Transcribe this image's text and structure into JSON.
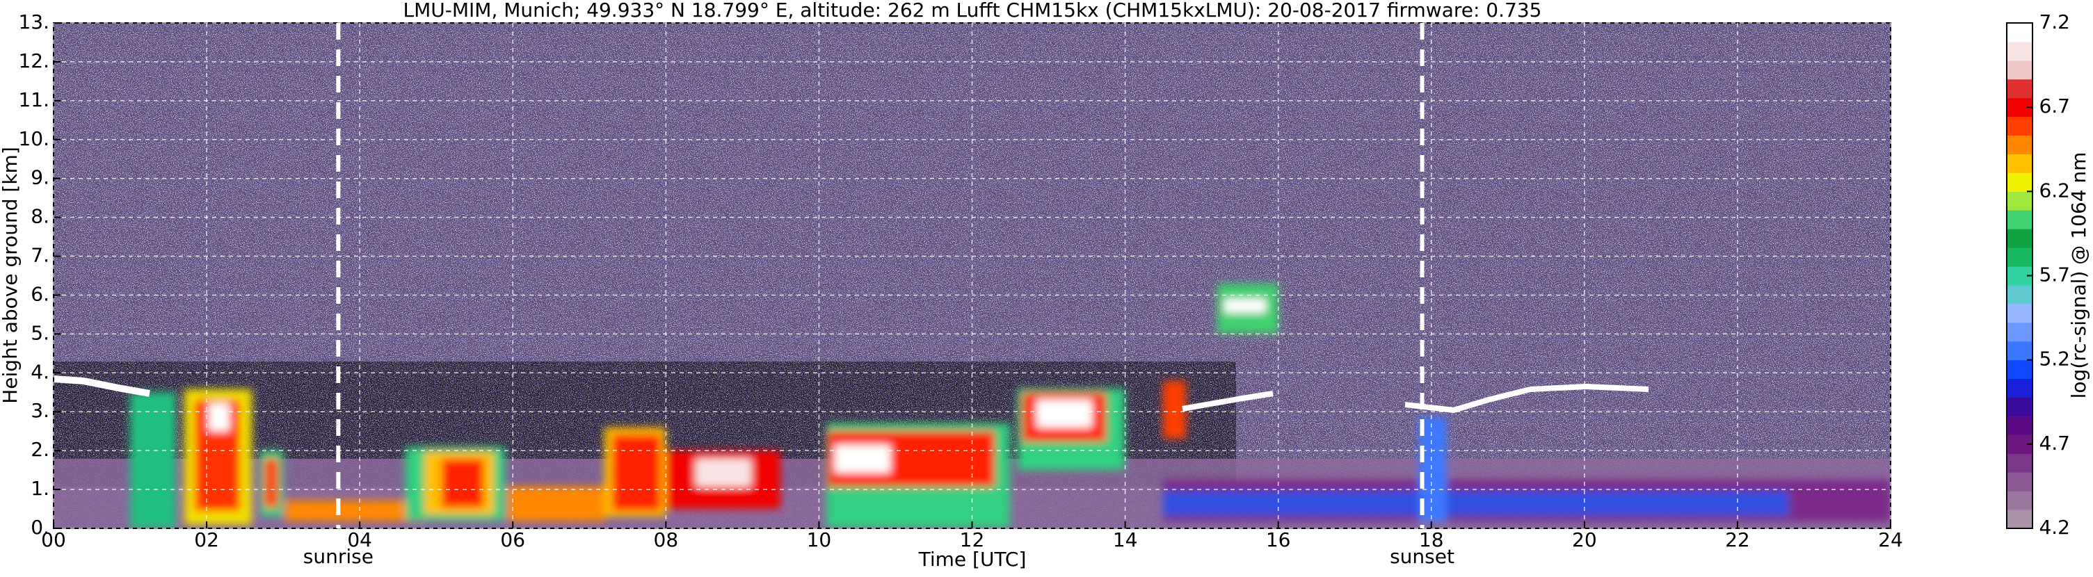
{
  "chart_data": {
    "type": "heatmap",
    "title": "LMU-MIM, Munich; 49.933° N 18.799° E, altitude: 262 m    Lufft CHM15kx (CHM15kxLMU): 20-08-2017    firmware: 0.735",
    "x_label": "Time [UTC]",
    "y_label": "Height above ground [km]",
    "xlim": [
      0,
      24
    ],
    "xticks": [
      {
        "value": 0,
        "label": "00"
      },
      {
        "value": 2,
        "label": "02"
      },
      {
        "value": 4,
        "label": "04"
      },
      {
        "value": 6,
        "label": "06"
      },
      {
        "value": 8,
        "label": "08"
      },
      10,
      12,
      14,
      16,
      18,
      20,
      22,
      24
    ],
    "ylim": [
      0,
      13
    ],
    "yticks": [
      {
        "value": 0,
        "label": "0."
      },
      {
        "value": 1,
        "label": "1."
      },
      {
        "value": 2,
        "label": "2."
      },
      {
        "value": 3,
        "label": "3."
      },
      {
        "value": 4,
        "label": "4."
      },
      {
        "value": 5,
        "label": "5."
      },
      {
        "value": 6,
        "label": "6."
      },
      {
        "value": 7,
        "label": "7."
      },
      {
        "value": 8,
        "label": "8."
      },
      {
        "value": 9,
        "label": "9."
      },
      {
        "value": 10,
        "label": "10."
      },
      {
        "value": 11,
        "label": "11."
      },
      {
        "value": 12,
        "label": "12."
      },
      {
        "value": 13,
        "label": "13."
      }
    ],
    "grid": true,
    "annotations": [
      {
        "text": "sunrise",
        "x": 3.72
      },
      {
        "text": "sunset",
        "x": 17.88
      }
    ],
    "colorbar": {
      "label": "log(rc-signal) @ 1064 nm",
      "clim": [
        4.2,
        7.2
      ],
      "ticks": [
        4.2,
        4.7,
        5.2,
        5.7,
        6.2,
        6.7,
        7.2
      ],
      "colors": [
        "#a893a8",
        "#9a78a0",
        "#8c5894",
        "#7c3888",
        "#6c1880",
        "#5a0a84",
        "#3a0a9c",
        "#1a20d8",
        "#1048ff",
        "#3c78ff",
        "#6c98ff",
        "#9ab8ff",
        "#60c8d0",
        "#30d0a0",
        "#18b860",
        "#10a040",
        "#40d070",
        "#a0e840",
        "#f0f000",
        "#ffc000",
        "#ff8800",
        "#ff4000",
        "#f00000",
        "#e03030",
        "#f0c8c8",
        "#f8e4e4",
        "#ffffff"
      ]
    }
  }
}
